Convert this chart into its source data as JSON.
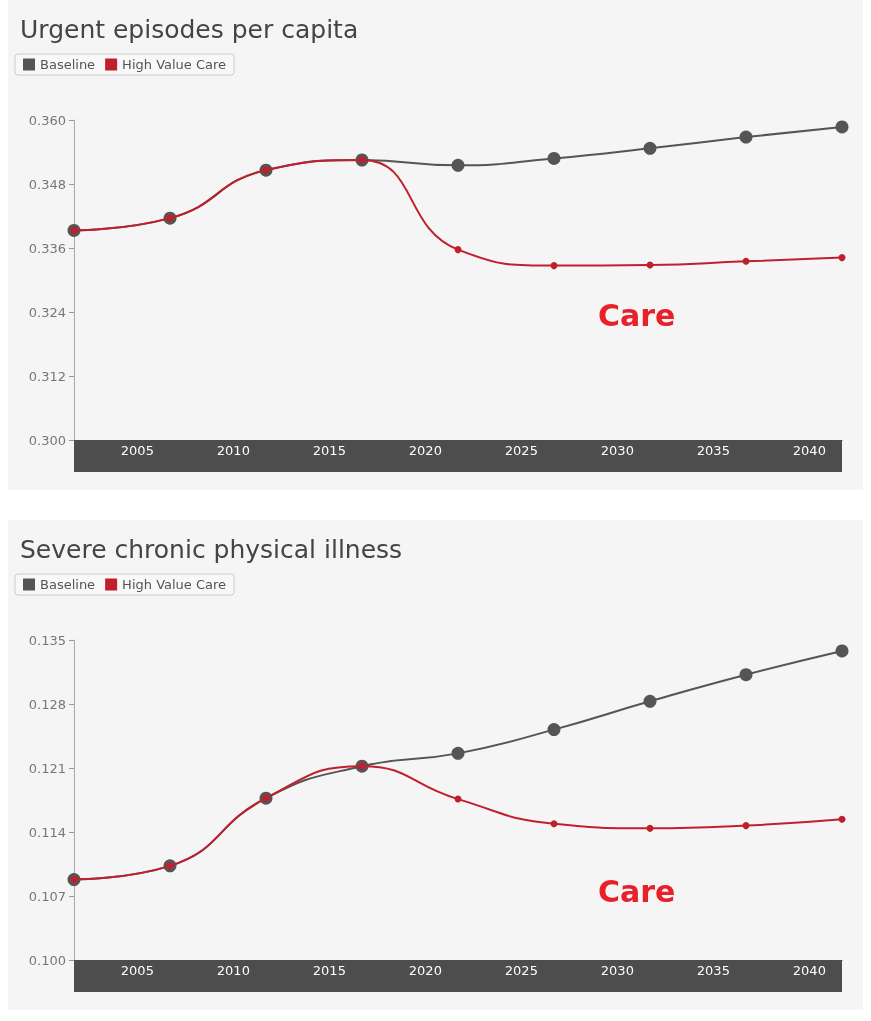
{
  "chart_data": [
    {
      "type": "line",
      "title": "Urgent episodes per capita",
      "x": [
        2001.7,
        2006.7,
        2011.7,
        2016.7,
        2021.7,
        2026.7,
        2031.7,
        2036.7,
        2041.7
      ],
      "series": [
        {
          "name": "Baseline",
          "color": "#555555",
          "values": [
            0.3393,
            0.3416,
            0.3506,
            0.3525,
            0.3515,
            0.3528,
            0.3547,
            0.3568,
            0.3587
          ]
        },
        {
          "name": "High Value Care",
          "color": "#c0202e",
          "values": [
            0.3393,
            0.3416,
            0.3506,
            0.3525,
            0.3357,
            0.3327,
            0.3328,
            0.3335,
            0.3342
          ]
        }
      ],
      "xlim": [
        2001.7,
        2041.7
      ],
      "xticks": [
        2005,
        2010,
        2015,
        2020,
        2025,
        2030,
        2035,
        2040
      ],
      "ylim": [
        0.3,
        0.36
      ],
      "yticks": [
        {
          "value": 0.3,
          "label": "0.300"
        },
        {
          "value": 0.312,
          "label": "0.312"
        },
        {
          "value": 0.324,
          "label": "0.324"
        },
        {
          "value": 0.336,
          "label": "0.336"
        },
        {
          "value": 0.348,
          "label": "0.348"
        },
        {
          "value": 0.36,
          "label": "0.360"
        }
      ],
      "annotations": [
        "Care"
      ],
      "grid": false,
      "legend": "top left",
      "marker": "circle",
      "line_style": "solid"
    },
    {
      "type": "line",
      "title": "Severe chronic physical illness",
      "x": [
        2001.7,
        2006.7,
        2011.7,
        2016.7,
        2021.7,
        2026.7,
        2031.7,
        2036.7,
        2041.7
      ],
      "series": [
        {
          "name": "Baseline",
          "color": "#555555",
          "values": [
            0.1088,
            0.1103,
            0.1177,
            0.1212,
            0.1226,
            0.1252,
            0.1283,
            0.1312,
            0.1338
          ]
        },
        {
          "name": "High Value Care",
          "color": "#c0202e",
          "values": [
            0.1088,
            0.1103,
            0.1177,
            0.1212,
            0.1176,
            0.1149,
            0.1144,
            0.1147,
            0.1154
          ]
        }
      ],
      "xlim": [
        2001.7,
        2041.7
      ],
      "xticks": [
        2005,
        2010,
        2015,
        2020,
        2025,
        2030,
        2035,
        2040
      ],
      "ylim": [
        0.1,
        0.135
      ],
      "yticks": [
        {
          "value": 0.1,
          "label": "0.100"
        },
        {
          "value": 0.107,
          "label": "0.107"
        },
        {
          "value": 0.114,
          "label": "0.114"
        },
        {
          "value": 0.121,
          "label": "0.121"
        },
        {
          "value": 0.128,
          "label": "0.128"
        },
        {
          "value": 0.135,
          "label": "0.135"
        }
      ],
      "annotations": [
        "Care"
      ],
      "grid": false,
      "legend": "top left",
      "marker": "circle",
      "line_style": "solid"
    }
  ]
}
